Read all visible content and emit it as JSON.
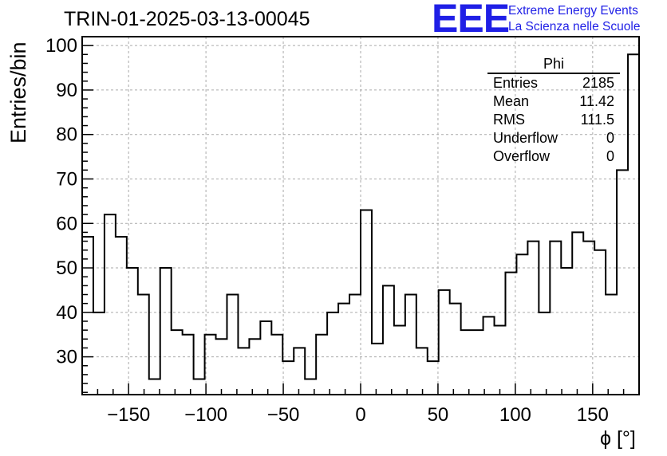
{
  "title": "TRIN-01-2025-03-13-00045",
  "logo": {
    "mark": "EEE",
    "line1": "Extreme Energy Events",
    "line2": "La Scienza nelle Scuole",
    "color": "#1f1fe6"
  },
  "stats": {
    "name": "Phi",
    "rows": [
      {
        "label": "Entries",
        "value": "2185"
      },
      {
        "label": "Mean",
        "value": "11.42"
      },
      {
        "label": "RMS",
        "value": "111.5"
      },
      {
        "label": "Underflow",
        "value": "0"
      },
      {
        "label": "Overflow",
        "value": "0"
      }
    ]
  },
  "chart_data": {
    "type": "bar",
    "style": "step-histogram",
    "xlabel": "ϕ [°]",
    "ylabel": "Entries/bin",
    "xlim": [
      -180,
      180
    ],
    "ylim": [
      21.5,
      102
    ],
    "bin_width": 7.2,
    "x_ticks": [
      -150,
      -100,
      -50,
      0,
      50,
      100,
      150
    ],
    "x_tick_labels": [
      "−150",
      "−100",
      "−50",
      "0",
      "50",
      "100",
      "150"
    ],
    "y_ticks": [
      30,
      40,
      50,
      60,
      70,
      80,
      90,
      100
    ],
    "y_tick_labels": [
      "30",
      "40",
      "50",
      "60",
      "70",
      "80",
      "90",
      "100"
    ],
    "grid": true,
    "values": [
      57,
      40,
      62,
      57,
      50,
      44,
      25,
      50,
      36,
      35,
      25,
      35,
      34,
      44,
      32,
      34,
      38,
      35,
      29,
      32,
      25,
      35,
      40,
      42,
      44,
      63,
      33,
      46,
      37,
      44,
      32,
      29,
      45,
      42,
      36,
      36,
      39,
      37,
      49,
      53,
      56,
      40,
      56,
      50,
      58,
      56,
      54,
      44,
      72,
      98
    ]
  }
}
